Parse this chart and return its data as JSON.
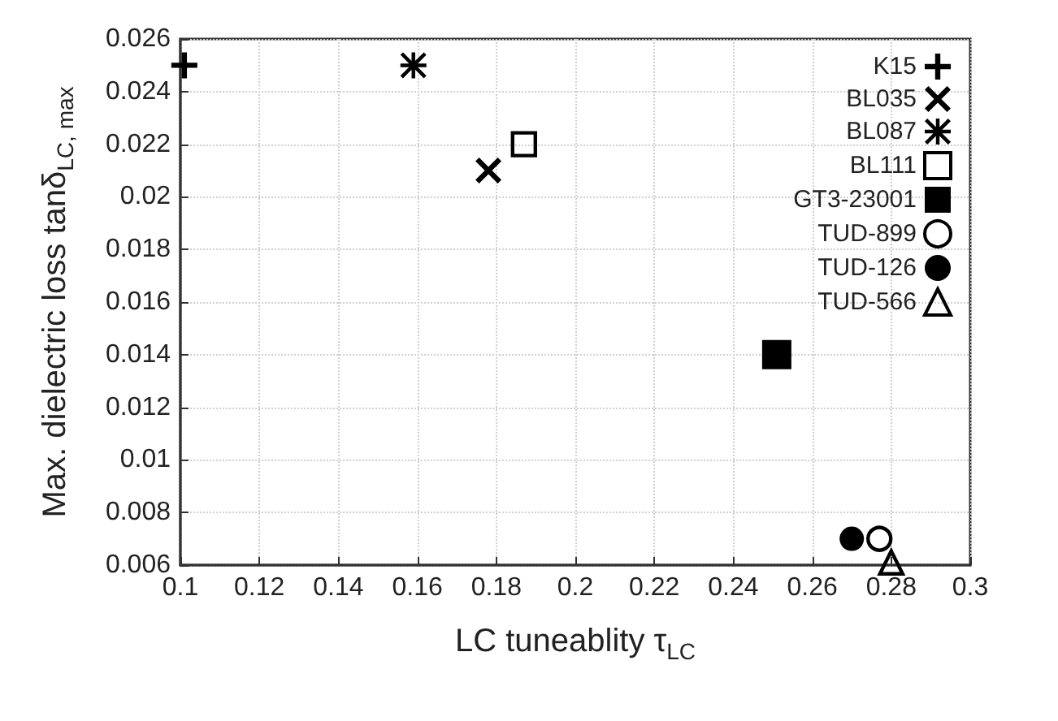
{
  "chart_data": {
    "type": "scatter",
    "xlabel": "LC tuneablity τ$_{LC}$",
    "ylabel": "Max. dielectric loss tanδ$_{LC, max}$",
    "xlim": [
      0.1,
      0.3
    ],
    "xticks": [
      0.1,
      0.12,
      0.14,
      0.16,
      0.18,
      0.2,
      0.22,
      0.24,
      0.26,
      0.28,
      0.3
    ],
    "ylim": [
      0.006,
      0.026
    ],
    "yticks": [
      0.006,
      0.008,
      0.01,
      0.012,
      0.014,
      0.016,
      0.018,
      0.02,
      0.022,
      0.024,
      0.026
    ],
    "grid": true,
    "legend": "top right",
    "series": [
      {
        "name": "K15",
        "color": "#000000",
        "marker": "plus",
        "x": [
          0.101
        ],
        "values": [
          0.025
        ]
      },
      {
        "name": "BL035",
        "color": "#000000",
        "marker": "x",
        "x": [
          0.178
        ],
        "values": [
          0.021
        ]
      },
      {
        "name": "BL087",
        "color": "#000000",
        "marker": "star",
        "x": [
          0.159
        ],
        "values": [
          0.025
        ]
      },
      {
        "name": "BL111",
        "color": "#000000",
        "marker": "square-open",
        "x": [
          0.187
        ],
        "values": [
          0.022
        ]
      },
      {
        "name": "GT3-23001",
        "color": "#000000",
        "marker": "square",
        "x": [
          0.251
        ],
        "values": [
          0.014
        ]
      },
      {
        "name": "TUD-899",
        "color": "#000000",
        "marker": "circle-open",
        "x": [
          0.277
        ],
        "values": [
          0.007
        ]
      },
      {
        "name": "TUD-126",
        "color": "#000000",
        "marker": "circle",
        "x": [
          0.27
        ],
        "values": [
          0.007
        ]
      },
      {
        "name": "TUD-566",
        "color": "#000000",
        "marker": "triangle-open",
        "x": [
          0.28
        ],
        "values": [
          0.0061
        ]
      }
    ]
  }
}
